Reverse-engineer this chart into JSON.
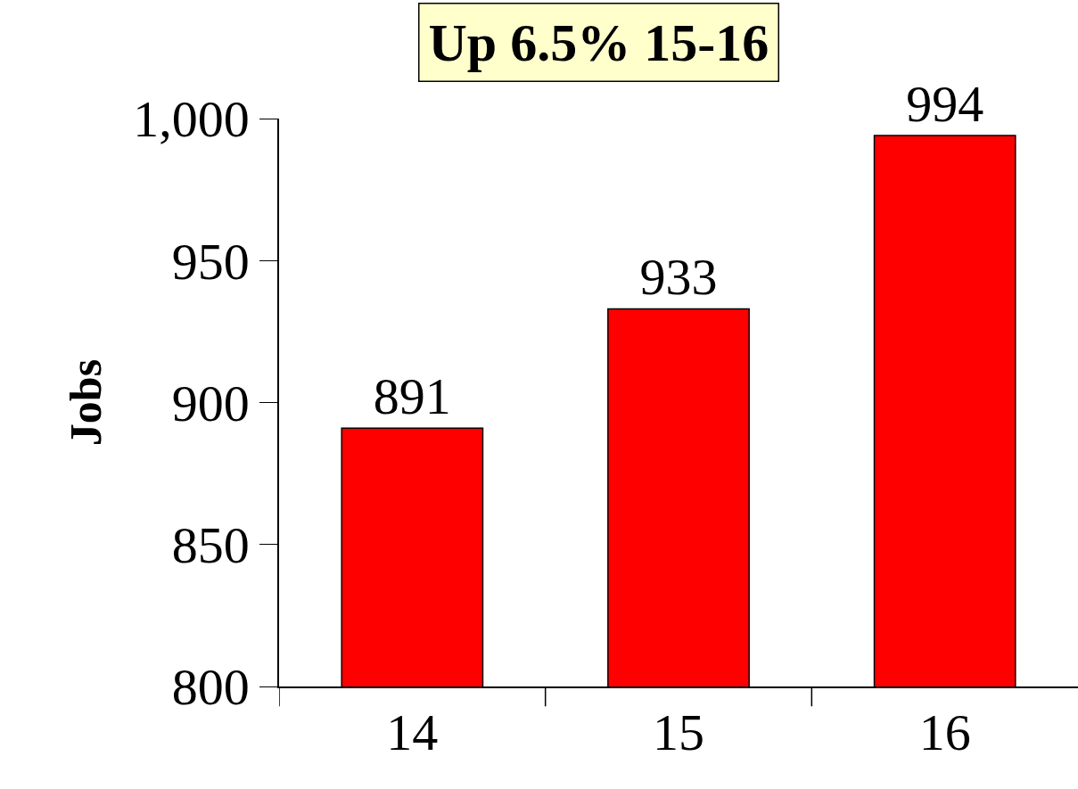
{
  "chart_data": {
    "type": "bar",
    "title": "Up 6.5% 15-16",
    "ylabel": "Jobs",
    "categories": [
      "14",
      "15",
      "16"
    ],
    "values": [
      891,
      933,
      994
    ],
    "color": "#ff0000",
    "ylim": [
      800,
      1000
    ],
    "yticks": [
      800,
      850,
      900,
      950,
      {
        "value": 1000,
        "label": "1,000"
      }
    ],
    "data_labels": true
  }
}
